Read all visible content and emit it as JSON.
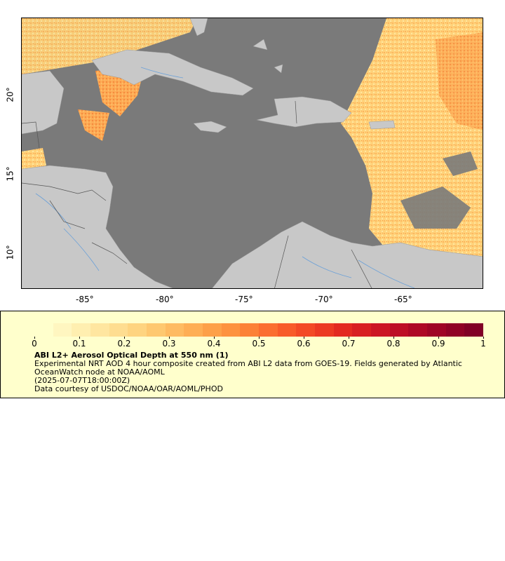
{
  "map": {
    "x_ticks": [
      "-85°",
      "-80°",
      "-75°",
      "-70°",
      "-65°"
    ],
    "y_ticks": [
      "20°",
      "15°",
      "10°"
    ],
    "colors": {
      "ocean": "#7a7a7a",
      "land": "#c8c8c8",
      "rivers": "#6aa0d8",
      "borders": "#555555",
      "aod_low": "#ffe8a8",
      "aod_mid": "#fdae55",
      "aod_high": "#e8502a"
    }
  },
  "legend": {
    "ticks": [
      "0",
      "0.1",
      "0.2",
      "0.3",
      "0.4",
      "0.5",
      "0.6",
      "0.7",
      "0.8",
      "0.9",
      "1"
    ],
    "title": "ABI L2+ Aerosol Optical Depth at 550 nm (1)",
    "line1": "Experimental NRT AOD 4 hour composite created from ABI L2 data from GOES-19. Fields generated by Atlantic OceanWatch node at NOAA/AOML",
    "line2": "(2025-07-07T18:00:00Z)",
    "line3": "Data courtesy of USDOC/NOAA/OAR/AOML/PHOD"
  }
}
